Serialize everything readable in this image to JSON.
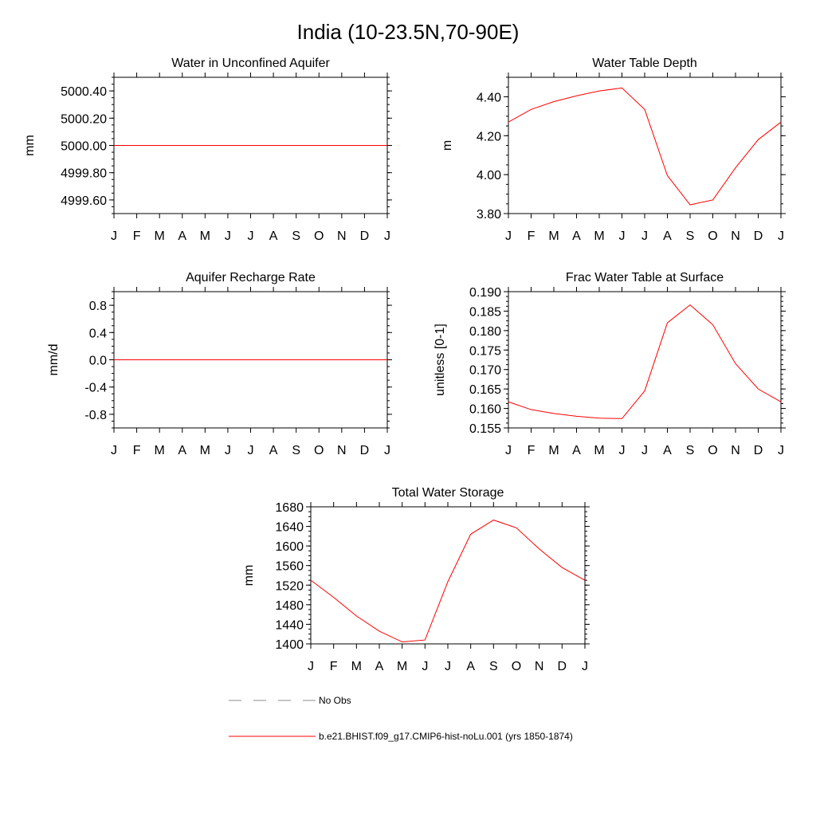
{
  "title": "India (10-23.5N,70-90E)",
  "months": [
    "J",
    "F",
    "M",
    "A",
    "M",
    "J",
    "J",
    "A",
    "S",
    "O",
    "N",
    "D",
    "J"
  ],
  "colors": {
    "model": "#ff0000",
    "obs": "#8c8c8c"
  },
  "legend": {
    "obs_label": "No Obs",
    "model_label": "b.e21.BHIST.f09_g17.CMIP6-hist-noLu.001 (yrs 1850-1874)"
  },
  "chart_data": [
    {
      "type": "line",
      "title": "Water in Unconfined Aquifer",
      "ylabel": "mm",
      "ylim": [
        4999.5,
        5000.5
      ],
      "yticks": [
        4999.6,
        4999.8,
        5000.0,
        5000.2,
        5000.4
      ],
      "ytick_labels": [
        "4999.60",
        "4999.80",
        "5000.00",
        "5000.20",
        "5000.40"
      ],
      "x": [
        "J",
        "F",
        "M",
        "A",
        "M",
        "J",
        "J",
        "A",
        "S",
        "O",
        "N",
        "D",
        "J"
      ],
      "values": [
        5000,
        5000,
        5000,
        5000,
        5000,
        5000,
        5000,
        5000,
        5000,
        5000,
        5000,
        5000,
        5000
      ]
    },
    {
      "type": "line",
      "title": "Water Table Depth",
      "ylabel": "m",
      "ylim": [
        3.8,
        4.5
      ],
      "yticks": [
        3.8,
        4.0,
        4.2,
        4.4
      ],
      "ytick_labels": [
        "3.80",
        "4.00",
        "4.20",
        "4.40"
      ],
      "x": [
        "J",
        "F",
        "M",
        "A",
        "M",
        "J",
        "J",
        "A",
        "S",
        "O",
        "N",
        "D",
        "J"
      ],
      "values": [
        4.27,
        4.335,
        4.375,
        4.405,
        4.43,
        4.445,
        4.335,
        3.995,
        3.845,
        3.87,
        4.035,
        4.18,
        4.27
      ]
    },
    {
      "type": "line",
      "title": "Aquifer Recharge Rate",
      "ylabel": "mm/d",
      "ylim": [
        -1.0,
        1.0
      ],
      "yticks": [
        -0.8,
        -0.4,
        0.0,
        0.4,
        0.8
      ],
      "ytick_labels": [
        "-0.8",
        "-0.4",
        "0.0",
        "0.4",
        "0.8"
      ],
      "x": [
        "J",
        "F",
        "M",
        "A",
        "M",
        "J",
        "J",
        "A",
        "S",
        "O",
        "N",
        "D",
        "J"
      ],
      "values": [
        0,
        0,
        0,
        0,
        0,
        0,
        0,
        0,
        0,
        0,
        0,
        0,
        0
      ]
    },
    {
      "type": "line",
      "title": "Frac Water Table at Surface",
      "ylabel": "unitless [0-1]",
      "ylim": [
        0.155,
        0.19
      ],
      "yticks": [
        0.155,
        0.16,
        0.165,
        0.17,
        0.175,
        0.18,
        0.185,
        0.19
      ],
      "ytick_labels": [
        "0.155",
        "0.160",
        "0.165",
        "0.170",
        "0.175",
        "0.180",
        "0.185",
        "0.190"
      ],
      "x": [
        "J",
        "F",
        "M",
        "A",
        "M",
        "J",
        "J",
        "A",
        "S",
        "O",
        "N",
        "D",
        "J"
      ],
      "values": [
        0.1617,
        0.1597,
        0.1587,
        0.158,
        0.1575,
        0.1574,
        0.1645,
        0.182,
        0.1866,
        0.1815,
        0.1715,
        0.165,
        0.1617
      ]
    },
    {
      "type": "line",
      "title": "Total Water Storage",
      "ylabel": "mm",
      "ylim": [
        1400,
        1680
      ],
      "yticks": [
        1400,
        1440,
        1480,
        1520,
        1560,
        1600,
        1640,
        1680
      ],
      "ytick_labels": [
        "1400",
        "1440",
        "1480",
        "1520",
        "1560",
        "1600",
        "1640",
        "1680"
      ],
      "x": [
        "J",
        "F",
        "M",
        "A",
        "M",
        "J",
        "J",
        "A",
        "S",
        "O",
        "N",
        "D",
        "J"
      ],
      "values": [
        1530,
        1495,
        1457,
        1426,
        1404,
        1408,
        1527,
        1624,
        1653,
        1637,
        1594,
        1556,
        1530
      ]
    }
  ]
}
